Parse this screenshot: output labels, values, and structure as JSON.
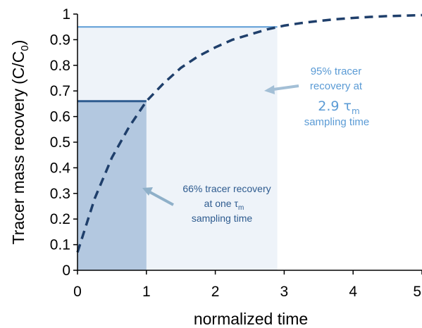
{
  "chart_data": {
    "type": "line",
    "title": "",
    "xlabel": "normalized time",
    "ylabel": {
      "main": "Tracer mass recovery",
      "paren_open": "(C/C",
      "sub": "0",
      "paren_close": ")"
    },
    "xlim": [
      0,
      5
    ],
    "ylim": [
      0,
      1
    ],
    "x_ticks": [
      "0",
      "1",
      "2",
      "3",
      "4",
      "5"
    ],
    "y_ticks": [
      "0",
      "0.1",
      "0.2",
      "0.3",
      "0.4",
      "0.5",
      "0.6",
      "0.7",
      "0.8",
      "0.9",
      "1"
    ],
    "grid": false,
    "legend": "none",
    "series": [
      {
        "style": "dashed",
        "color": "#1f3f6b",
        "x": [
          0,
          0.25,
          0.5,
          0.75,
          1,
          1.25,
          1.5,
          1.75,
          2,
          2.25,
          2.5,
          2.75,
          3,
          3.25,
          3.5,
          3.75,
          4,
          4.25,
          4.5,
          4.75,
          5
        ],
        "y": [
          0.07,
          0.28,
          0.44,
          0.56,
          0.66,
          0.73,
          0.79,
          0.835,
          0.87,
          0.9,
          0.92,
          0.94,
          0.955,
          0.965,
          0.973,
          0.98,
          0.985,
          0.989,
          0.992,
          0.994,
          0.996
        ]
      }
    ],
    "regions": [
      {
        "x_start": 0,
        "x_end": 1,
        "y_top": 0.66,
        "fill": "#b3c8e0",
        "line": "#2e5b8f"
      },
      {
        "x_start": 1,
        "x_end": 2.9,
        "y_top": 0.95,
        "fill": "#eef3f9",
        "line": "#5b9bd5"
      }
    ],
    "annotations": [
      {
        "name": "annotation-66",
        "color": "#2e5b8f",
        "lines": [
          "66% tracer recovery",
          "at one τ",
          "sampling time"
        ],
        "subscript": "m"
      },
      {
        "name": "annotation-95",
        "color": "#5b9bd5",
        "lines": [
          "95% tracer",
          "recovery at",
          "2.9 τ",
          "sampling time"
        ],
        "subscript": "m"
      }
    ]
  }
}
